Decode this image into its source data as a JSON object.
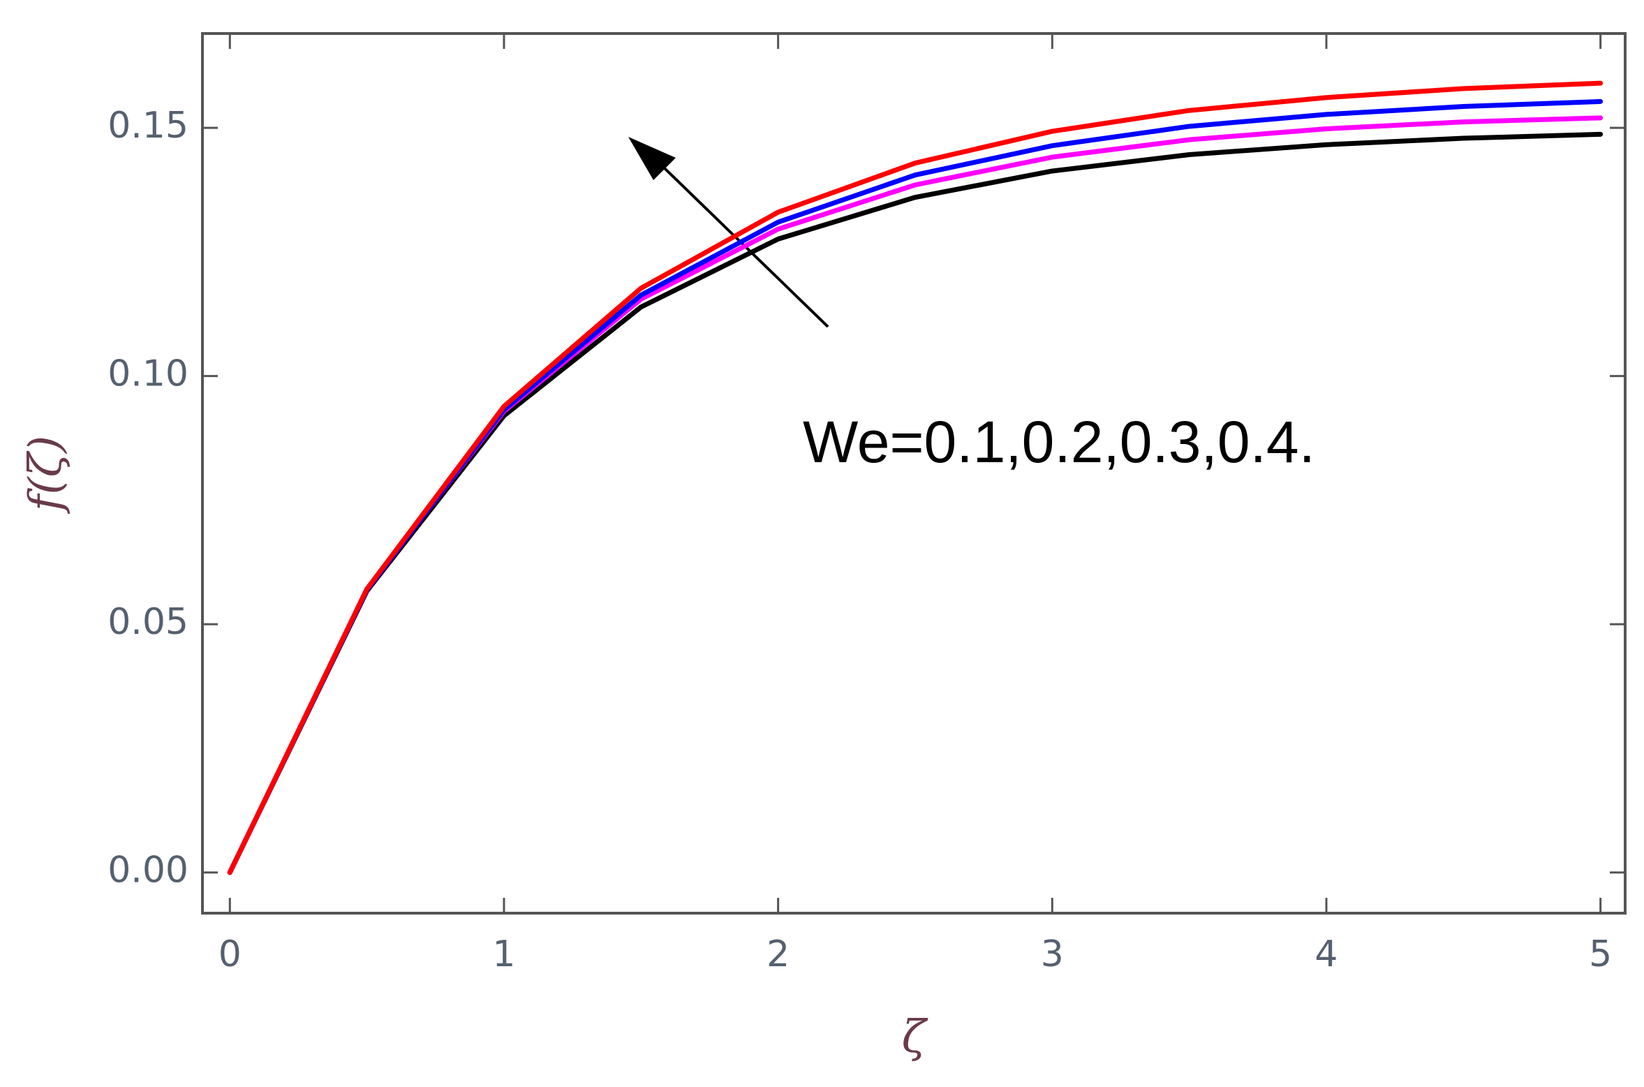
{
  "chart_data": {
    "type": "line",
    "x": [
      0,
      0.5,
      1,
      1.5,
      2,
      2.5,
      3,
      3.5,
      4,
      4.5,
      5
    ],
    "series": [
      {
        "color": "#000000",
        "values": [
          0,
          0.0567,
          0.092,
          0.1139,
          0.1276,
          0.136,
          0.1413,
          0.1446,
          0.1466,
          0.1479,
          0.1487
        ]
      },
      {
        "color": "#ff00ff",
        "values": [
          0,
          0.0571,
          0.0929,
          0.1155,
          0.1296,
          0.1385,
          0.1441,
          0.1476,
          0.1498,
          0.1512,
          0.152
        ]
      },
      {
        "color": "#0000ff",
        "values": [
          0,
          0.0569,
          0.0932,
          0.1163,
          0.131,
          0.1405,
          0.1464,
          0.1503,
          0.1527,
          0.1543,
          0.1553
        ]
      },
      {
        "color": "#ff0000",
        "values": [
          0,
          0.0571,
          0.0939,
          0.1177,
          0.133,
          0.1429,
          0.1493,
          0.1535,
          0.1561,
          0.1579,
          0.159
        ]
      }
    ],
    "x_label": "ζ",
    "y_label": "f(ζ)",
    "annotation": "We=0.1,0.2,0.3,0.4.",
    "xlim": [
      -0.1,
      5.09
    ],
    "ylim": [
      -0.0082,
      0.169
    ],
    "xticks": [
      0,
      1,
      2,
      3,
      4,
      5
    ],
    "yticks": [
      {
        "value": 0,
        "label": "0.00"
      },
      {
        "value": 0.05,
        "label": "0.05"
      },
      {
        "value": 0.1,
        "label": "0.10"
      },
      {
        "value": 0.15,
        "label": "0.15"
      }
    ]
  }
}
